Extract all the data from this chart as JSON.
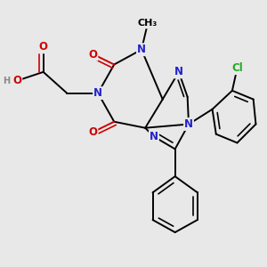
{
  "background_color": "#e8e8e8",
  "atom_colors": {
    "C": "#000000",
    "N": "#2222cc",
    "O": "#cc0000",
    "Cl": "#22aa22",
    "H": "#888888"
  },
  "bond_color": "#000000",
  "bond_width": 1.4,
  "font_size": 8.5,
  "bg_color": "#e8e8e8"
}
